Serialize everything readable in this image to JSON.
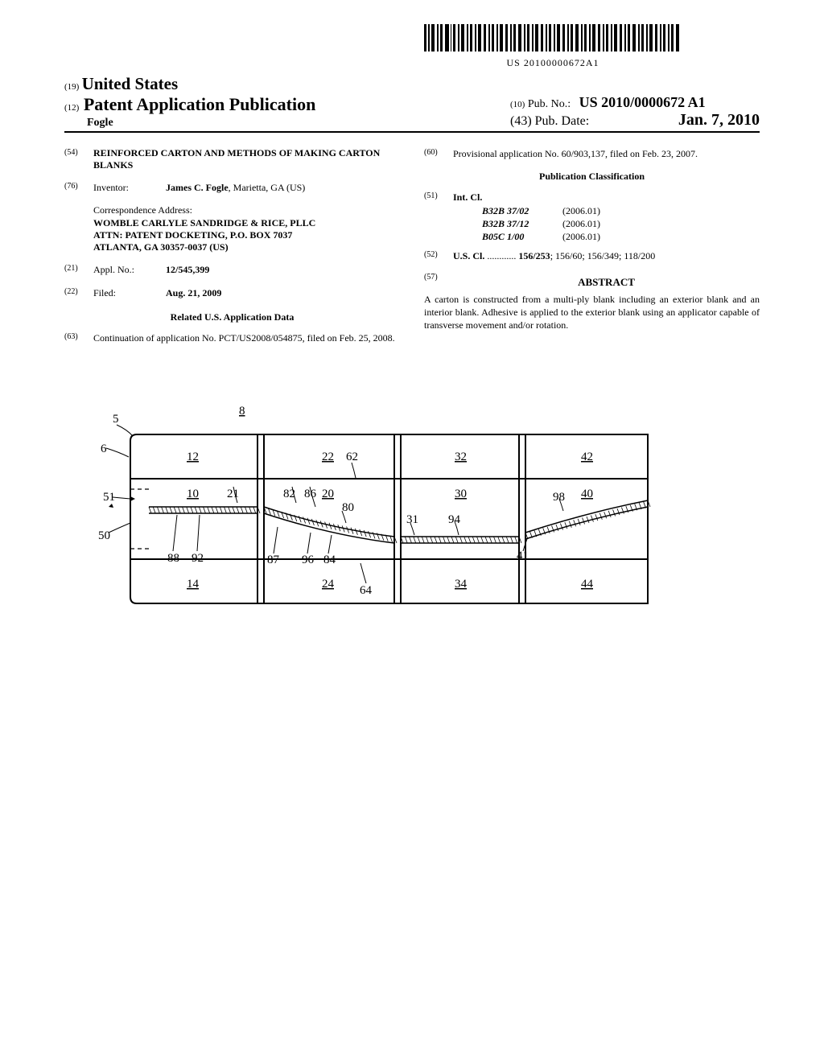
{
  "barcode_text": "US 20100000672A1",
  "country_num": "(19)",
  "country": "United States",
  "pub_title_num": "(12)",
  "pub_title": "Patent Application Publication",
  "author": "Fogle",
  "pub_no_num": "(10)",
  "pub_no_label": "Pub. No.:",
  "pub_no_val": "US 2010/0000672 A1",
  "pub_date_num": "(43)",
  "pub_date_label": "Pub. Date:",
  "pub_date_val": "Jan. 7, 2010",
  "left": {
    "f54": {
      "num": "(54)",
      "body": "REINFORCED CARTON AND METHODS OF MAKING CARTON BLANKS"
    },
    "f76": {
      "num": "(76)",
      "label": "Inventor:",
      "body": "James C. Fogle",
      "loc": ", Marietta, GA (US)"
    },
    "addr_label": "Correspondence Address:",
    "addr_body": "WOMBLE CARLYLE SANDRIDGE & RICE, PLLC\nATTN: PATENT DOCKETING, P.O. BOX 7037\nATLANTA, GA 30357-0037 (US)",
    "f21": {
      "num": "(21)",
      "label": "Appl. No.:",
      "body": "12/545,399"
    },
    "f22": {
      "num": "(22)",
      "label": "Filed:",
      "body": "Aug. 21, 2009"
    },
    "related_heading": "Related U.S. Application Data",
    "f63": {
      "num": "(63)",
      "body": "Continuation of application No. PCT/US2008/054875, filed on Feb. 25, 2008."
    }
  },
  "right": {
    "f60": {
      "num": "(60)",
      "body": "Provisional application No. 60/903,137, filed on Feb. 23, 2007."
    },
    "pub_class_heading": "Publication Classification",
    "f51": {
      "num": "(51)",
      "label": "Int. Cl.",
      "rows": [
        {
          "code": "B32B 37/02",
          "year": "(2006.01)"
        },
        {
          "code": "B32B 37/12",
          "year": "(2006.01)"
        },
        {
          "code": "B05C 1/00",
          "year": "(2006.01)"
        }
      ]
    },
    "f52": {
      "num": "(52)",
      "label": "U.S. Cl.",
      "dots": " ............ ",
      "first": "156/253",
      "rest": "; 156/60; 156/349; 118/200"
    },
    "f57": {
      "num": "(57)",
      "heading": "ABSTRACT"
    },
    "abstract": "A carton is constructed from a multi-ply blank including an exterior blank and an interior blank. Adhesive is applied to the exterior blank using an applicator capable of transverse movement and/or rotation."
  },
  "figure": {
    "labels": {
      "top": [
        "12",
        "22",
        "32",
        "42"
      ],
      "mid": [
        "10",
        "20",
        "30",
        "40"
      ],
      "bot": [
        "14",
        "24",
        "34",
        "44"
      ],
      "eight": "8",
      "five": "5",
      "six": "6",
      "fiftyone": "51",
      "fifty": "50",
      "sixtytwo": "62",
      "twentyone": "21",
      "eightytwo": "82",
      "eightysix": "86",
      "eighty": "80",
      "thirtyone": "31",
      "ninetyfour": "94",
      "ninetyeight": "98",
      "eightyeight": "88",
      "ninetytwo": "92",
      "eightyseven": "87",
      "ninetysix": "96",
      "eightyfour": "84",
      "sixtyfour": "64",
      "fortyone": "41"
    },
    "colors": {
      "line": "#000000",
      "bg": "#ffffff"
    }
  }
}
